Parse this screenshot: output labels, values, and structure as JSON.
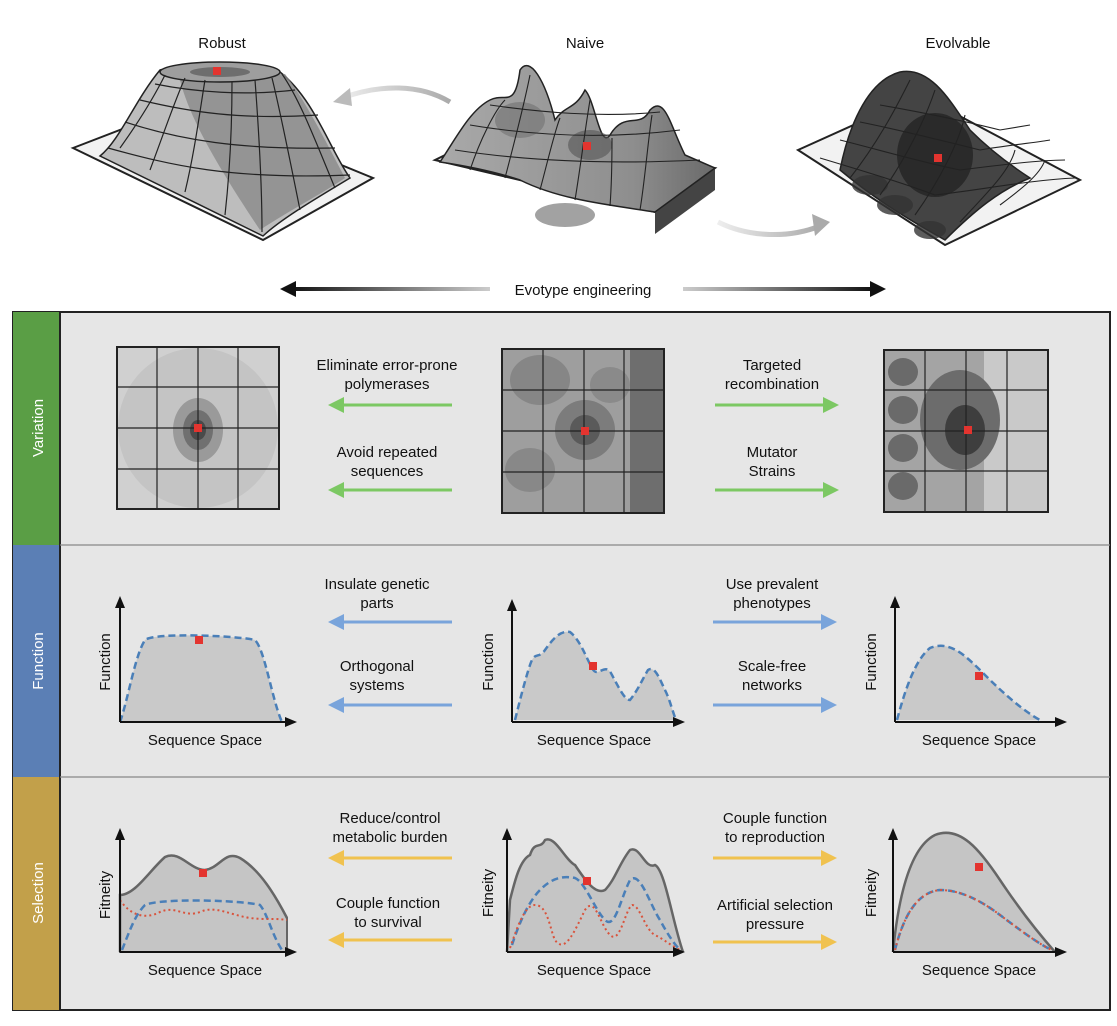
{
  "top": {
    "robust_title": "Robust",
    "naive_title": "Naive",
    "evolvable_title": "Evolvable",
    "engineering_label": "Evotype engineering"
  },
  "rows": {
    "variation": {
      "label": "Variation",
      "color": "#5a9e45",
      "arrow_color": "#7cc863",
      "left_arrow_1": [
        "Eliminate error-prone",
        "polymerases"
      ],
      "left_arrow_2": [
        "Avoid repeated",
        "sequences"
      ],
      "right_arrow_1": [
        "Targeted",
        "recombination"
      ],
      "right_arrow_2": [
        "Mutator",
        "Strains"
      ]
    },
    "function": {
      "label": "Function",
      "color": "#5b7fb5",
      "arrow_color": "#79a4db",
      "left_arrow_1": [
        "Insulate genetic",
        "parts"
      ],
      "left_arrow_2": [
        "Orthogonal",
        "systems"
      ],
      "right_arrow_1": [
        "Use prevalent",
        "phenotypes"
      ],
      "right_arrow_2": [
        "Scale-free",
        "networks"
      ],
      "ylabel": "Function",
      "xlabel": "Sequence Space"
    },
    "selection": {
      "label": "Selection",
      "color": "#c2a04a",
      "arrow_color": "#f0c24f",
      "left_arrow_1": [
        "Reduce/control",
        "metabolic burden"
      ],
      "left_arrow_2": [
        "Couple function",
        "to survival"
      ],
      "right_arrow_1": [
        "Couple function",
        "to reproduction"
      ],
      "right_arrow_2": [
        "Artificial selection",
        "pressure"
      ],
      "ylabel": "Fitneity",
      "xlabel": "Sequence Space"
    }
  },
  "colors": {
    "marker": "#e3342f",
    "panel_bg": "#e6e6e6",
    "curve_dash": "#4a7fb8",
    "curve_dot": "#d9533c",
    "fill": "#c9c9c9"
  }
}
